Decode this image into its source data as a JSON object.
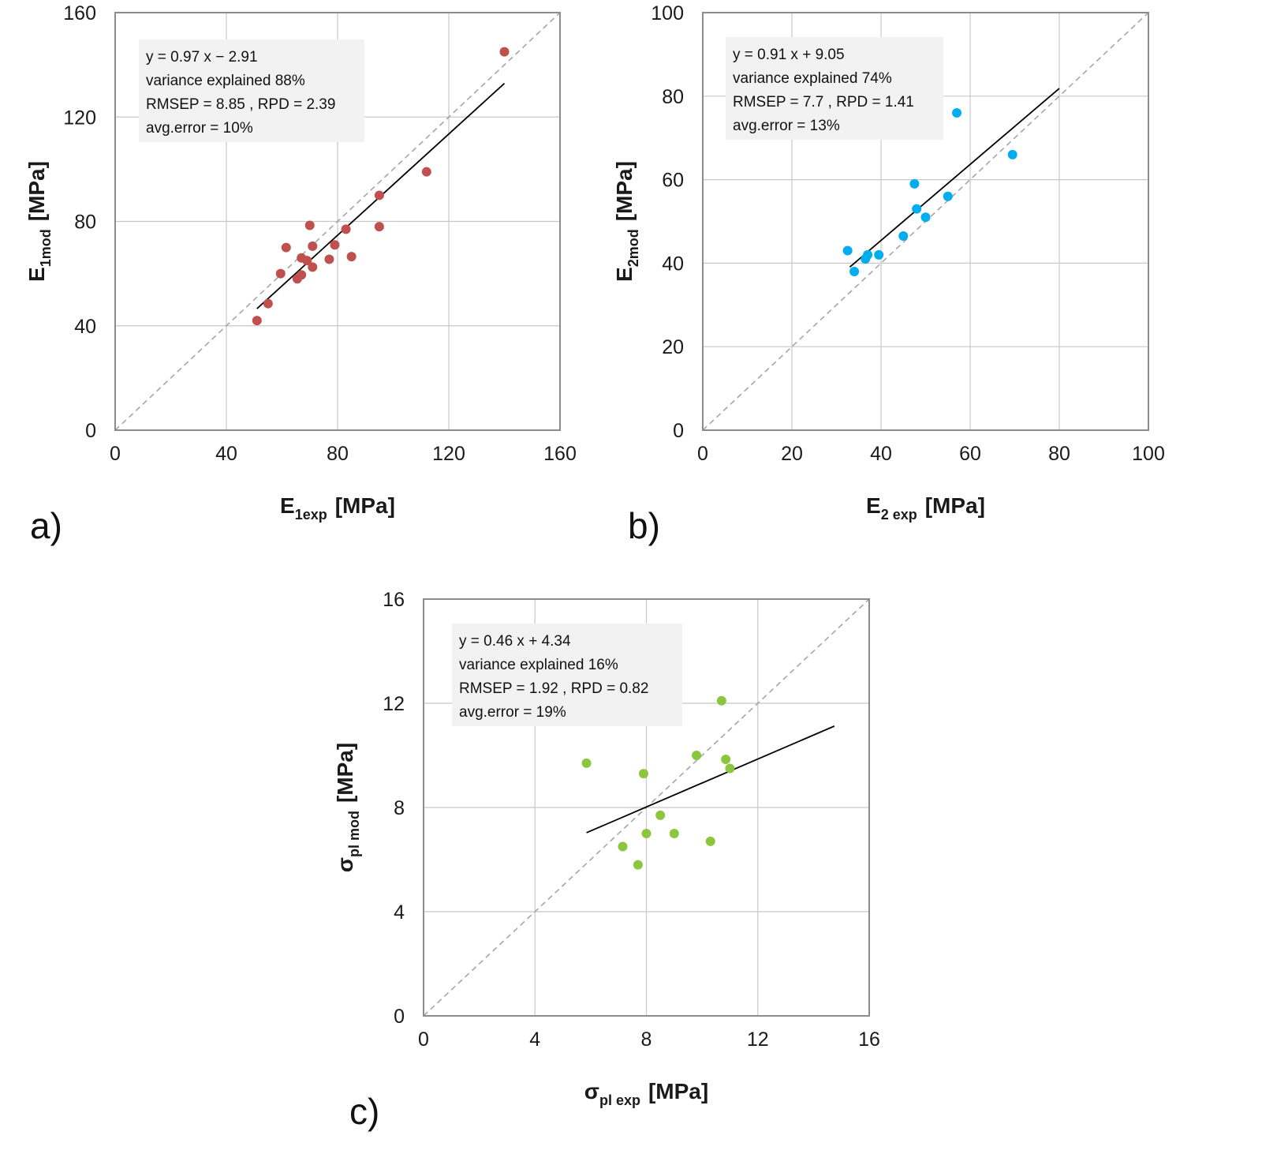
{
  "chart_data": [
    {
      "type": "scatter",
      "panel_label": "a)",
      "xlabel": {
        "base": "E",
        "sub": "1exp",
        "unit": "[MPa]"
      },
      "ylabel": {
        "base": "E",
        "sub": "1mod",
        "unit": "[MPa]"
      },
      "xlim": [
        0,
        160
      ],
      "ylim": [
        0,
        160
      ],
      "xticks": [
        "0",
        "40",
        "80",
        "120",
        "160"
      ],
      "yticks": [
        "0",
        "40",
        "80",
        "120",
        "160"
      ],
      "grid": true,
      "identity_line": true,
      "regression": {
        "slope": 0.97,
        "intercept": -2.91,
        "x_range": [
          51,
          140
        ]
      },
      "annotations": [
        "y = 0.97 x − 2.91",
        "variance  explained  88%",
        "RMSEP  =  8.85 ,  RPD  =  2.39",
        "avg.error  =  10%"
      ],
      "marker_color": "#c0504d",
      "points": [
        {
          "x": 140,
          "y": 145
        },
        {
          "x": 112,
          "y": 99
        },
        {
          "x": 95,
          "y": 90
        },
        {
          "x": 95,
          "y": 78
        },
        {
          "x": 85,
          "y": 66.5
        },
        {
          "x": 83,
          "y": 77
        },
        {
          "x": 79,
          "y": 71
        },
        {
          "x": 77,
          "y": 65.5
        },
        {
          "x": 71,
          "y": 70.5
        },
        {
          "x": 70,
          "y": 78.5
        },
        {
          "x": 71,
          "y": 62.5
        },
        {
          "x": 69,
          "y": 65
        },
        {
          "x": 67,
          "y": 66
        },
        {
          "x": 67,
          "y": 59.5
        },
        {
          "x": 65.5,
          "y": 58
        },
        {
          "x": 61.5,
          "y": 70
        },
        {
          "x": 59.5,
          "y": 60
        },
        {
          "x": 55,
          "y": 48.5
        },
        {
          "x": 51,
          "y": 42
        }
      ]
    },
    {
      "type": "scatter",
      "panel_label": "b)",
      "xlabel": {
        "base": "E",
        "sub": "2 exp",
        "unit": "[MPa]"
      },
      "ylabel": {
        "base": "E",
        "sub": "2mod",
        "unit": "[MPa]"
      },
      "xlim": [
        0,
        100
      ],
      "ylim": [
        0,
        100
      ],
      "xticks": [
        "0",
        "20",
        "40",
        "60",
        "80",
        "100"
      ],
      "yticks": [
        "0",
        "20",
        "40",
        "60",
        "80",
        "100"
      ],
      "grid": true,
      "identity_line": true,
      "regression": {
        "slope": 0.91,
        "intercept": 9.05,
        "x_range": [
          33,
          80
        ]
      },
      "annotations": [
        "y = 0.91 x + 9.05",
        "variance  explained  74%",
        "RMSEP  =  7.7 ,  RPD  =  1.41",
        "avg.error  =  13%"
      ],
      "marker_color": "#00aeef",
      "points": [
        {
          "x": 57,
          "y": 76
        },
        {
          "x": 69.5,
          "y": 66
        },
        {
          "x": 47.5,
          "y": 59
        },
        {
          "x": 55,
          "y": 56
        },
        {
          "x": 48,
          "y": 53
        },
        {
          "x": 50,
          "y": 51
        },
        {
          "x": 45,
          "y": 46.5
        },
        {
          "x": 32.5,
          "y": 43
        },
        {
          "x": 37,
          "y": 42
        },
        {
          "x": 39.5,
          "y": 42
        },
        {
          "x": 36.5,
          "y": 41
        },
        {
          "x": 34,
          "y": 38
        }
      ]
    },
    {
      "type": "scatter",
      "panel_label": "c)",
      "xlabel": {
        "base": "σ",
        "sub": "pl exp",
        "unit": "[MPa]"
      },
      "ylabel": {
        "base": "σ",
        "sub": "pl mod",
        "unit": "[MPa]"
      },
      "xlim": [
        0,
        16
      ],
      "ylim": [
        0,
        16
      ],
      "xticks": [
        "0",
        "4",
        "8",
        "12",
        "16"
      ],
      "yticks": [
        "0",
        "4",
        "8",
        "12",
        "16"
      ],
      "grid": true,
      "identity_line": true,
      "regression": {
        "slope": 0.46,
        "intercept": 4.34,
        "x_range": [
          5.85,
          14.75
        ]
      },
      "annotations": [
        "y = 0.46 x + 4.34",
        "variance  explained  16%",
        "RMSEP  =  1.92 ,  RPD  =  0.82",
        "avg.error  =  19%"
      ],
      "marker_color": "#8cc63f",
      "points": [
        {
          "x": 10.7,
          "y": 12.1
        },
        {
          "x": 5.85,
          "y": 9.7
        },
        {
          "x": 9.8,
          "y": 10
        },
        {
          "x": 10.85,
          "y": 9.85
        },
        {
          "x": 11,
          "y": 9.5
        },
        {
          "x": 7.9,
          "y": 9.3
        },
        {
          "x": 8.5,
          "y": 7.7
        },
        {
          "x": 8,
          "y": 7
        },
        {
          "x": 9,
          "y": 7
        },
        {
          "x": 7.15,
          "y": 6.5
        },
        {
          "x": 10.3,
          "y": 6.7
        },
        {
          "x": 7.7,
          "y": 5.8
        }
      ]
    }
  ]
}
